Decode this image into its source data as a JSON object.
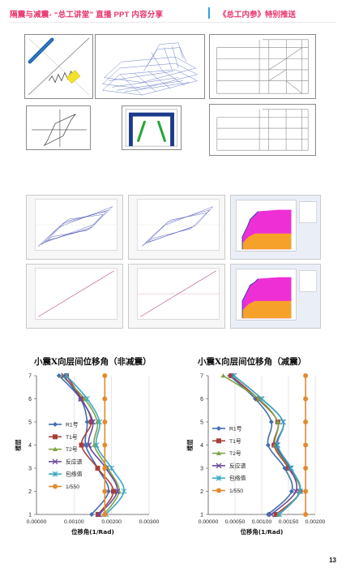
{
  "header": {
    "left_text": "隔震与减震- “总工讲堂” 直播 PPT 内容分享",
    "right_text": "《总工内参》特别推送"
  },
  "page_number": "13",
  "chart_data": [
    {
      "type": "line",
      "title": "小震X向层间位移角（非减震）",
      "xlabel": "位移角(1/Rad)",
      "ylabel": "楼层",
      "xlim": [
        0,
        0.003
      ],
      "ylim": [
        1,
        7
      ],
      "x_ticks": [
        "0.00000",
        "0.00100",
        "0.00200",
        "0.00300"
      ],
      "y_ticks": [
        "1",
        "2",
        "3",
        "4",
        "5",
        "6",
        "7"
      ],
      "floors": [
        1,
        2,
        3,
        4,
        5,
        6,
        7
      ],
      "grid": "vertical",
      "legend_position": "left",
      "series": [
        {
          "name": "R1号",
          "color": "#3f6fb0",
          "marker": "diamond",
          "values": [
            0.00147,
            0.00192,
            0.00163,
            0.00131,
            0.00135,
            0.00117,
            0.0006
          ]
        },
        {
          "name": "T1号",
          "color": "#a93f3a",
          "marker": "square",
          "values": [
            0.00164,
            0.00205,
            0.00163,
            0.0012,
            0.00146,
            0.0012,
            0.0008
          ]
        },
        {
          "name": "T2号",
          "color": "#7fa445",
          "marker": "triangle",
          "values": [
            0.0018,
            0.0022,
            0.0019,
            0.00154,
            0.00162,
            0.00128,
            0.00068
          ]
        },
        {
          "name": "反应谱",
          "color": "#6a4a9c",
          "marker": "x",
          "values": [
            0.00167,
            0.00215,
            0.00185,
            0.0014,
            0.0015,
            0.00118,
            0.00073
          ]
        },
        {
          "name": "包络值",
          "color": "#3aa9c4",
          "marker": "asterisk",
          "values": [
            0.00185,
            0.00233,
            0.002,
            0.0016,
            0.00168,
            0.00135,
            0.0008
          ]
        },
        {
          "name": "1/550",
          "color": "#e38a2f",
          "marker": "circle",
          "values": [
            0.00182,
            0.00182,
            0.00182,
            0.00182,
            0.00182,
            0.00182,
            0.00182
          ]
        }
      ]
    },
    {
      "type": "line",
      "title": "小震X向层间位移角（减震）",
      "xlabel": "位移角(1/Rad)",
      "ylabel": "楼层",
      "xlim": [
        0,
        0.002
      ],
      "ylim": [
        1,
        7
      ],
      "x_ticks": [
        "0.00000",
        "0.00050",
        "0.00100",
        "0.00150",
        "0.00200"
      ],
      "y_ticks": [
        "1",
        "2",
        "3",
        "4",
        "5",
        "6",
        "7"
      ],
      "floors": [
        1,
        2,
        3,
        4,
        5,
        6,
        7
      ],
      "grid": "vertical",
      "legend_position": "left",
      "series": [
        {
          "name": "R1号",
          "color": "#3f6fb0",
          "marker": "diamond",
          "values": [
            0.00112,
            0.00156,
            0.00143,
            0.00112,
            0.00118,
            0.00088,
            0.0004
          ]
        },
        {
          "name": "T1号",
          "color": "#a93f3a",
          "marker": "square",
          "values": [
            0.00127,
            0.00172,
            0.0015,
            0.00123,
            0.0013,
            0.00093,
            0.00043
          ]
        },
        {
          "name": "T2号",
          "color": "#7fa445",
          "marker": "triangle",
          "values": [
            0.00132,
            0.00171,
            0.00152,
            0.00125,
            0.0013,
            0.00094,
            0.00028
          ]
        },
        {
          "name": "反应谱",
          "color": "#6a4a9c",
          "marker": "x",
          "values": [
            0.00118,
            0.00164,
            0.00153,
            0.00128,
            0.0014,
            0.001,
            0.00048
          ]
        },
        {
          "name": "包络值",
          "color": "#3aa9c4",
          "marker": "asterisk",
          "values": [
            0.00133,
            0.00172,
            0.00155,
            0.0013,
            0.0014,
            0.001,
            0.00048
          ]
        },
        {
          "name": "1/550",
          "color": "#e38a2f",
          "marker": "circle",
          "values": [
            0.00182,
            0.00182,
            0.00182,
            0.00182,
            0.00182,
            0.00182,
            0.00182
          ]
        }
      ]
    }
  ]
}
